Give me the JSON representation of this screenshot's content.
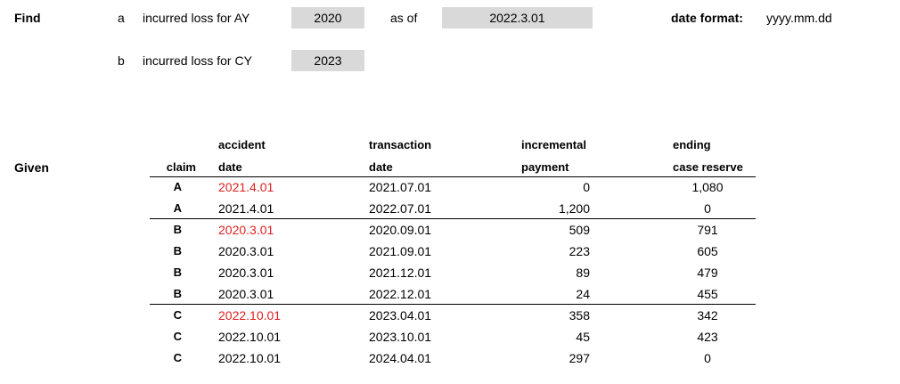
{
  "find": {
    "label": "Find",
    "a": {
      "letter": "a",
      "text": "incurred loss for AY",
      "value": "2020",
      "asof_label": "as of",
      "asof_value": "2022.3.01"
    },
    "b": {
      "letter": "b",
      "text": "incurred loss for CY",
      "value": "2023"
    },
    "date_format_label": "date format:",
    "date_format_value": "yyyy.mm.dd"
  },
  "given": {
    "label": "Given",
    "headers": {
      "claim": "claim",
      "accident_1": "accident",
      "accident_2": "date",
      "transaction_1": "transaction",
      "transaction_2": "date",
      "incremental_1": "incremental",
      "incremental_2": "payment",
      "ending_1": "ending",
      "ending_2": "case reserve"
    },
    "rows": [
      {
        "claim": "A",
        "accident_date": "2021.4.01",
        "transaction_date": "2021.07.01",
        "incremental_payment": "0",
        "ending_case_reserve": "1,080"
      },
      {
        "claim": "A",
        "accident_date": "2021.4.01",
        "transaction_date": "2022.07.01",
        "incremental_payment": "1,200",
        "ending_case_reserve": "0"
      },
      {
        "claim": "B",
        "accident_date": "2020.3.01",
        "transaction_date": "2020.09.01",
        "incremental_payment": "509",
        "ending_case_reserve": "791"
      },
      {
        "claim": "B",
        "accident_date": "2020.3.01",
        "transaction_date": "2021.09.01",
        "incremental_payment": "223",
        "ending_case_reserve": "605"
      },
      {
        "claim": "B",
        "accident_date": "2020.3.01",
        "transaction_date": "2021.12.01",
        "incremental_payment": "89",
        "ending_case_reserve": "479"
      },
      {
        "claim": "B",
        "accident_date": "2020.3.01",
        "transaction_date": "2022.12.01",
        "incremental_payment": "24",
        "ending_case_reserve": "455"
      },
      {
        "claim": "C",
        "accident_date": "2022.10.01",
        "transaction_date": "2023.04.01",
        "incremental_payment": "358",
        "ending_case_reserve": "342"
      },
      {
        "claim": "C",
        "accident_date": "2022.10.01",
        "transaction_date": "2023.10.01",
        "incremental_payment": "45",
        "ending_case_reserve": "423"
      },
      {
        "claim": "C",
        "accident_date": "2022.10.01",
        "transaction_date": "2024.04.01",
        "incremental_payment": "297",
        "ending_case_reserve": "0"
      }
    ],
    "highlight_color": "#e02020"
  }
}
